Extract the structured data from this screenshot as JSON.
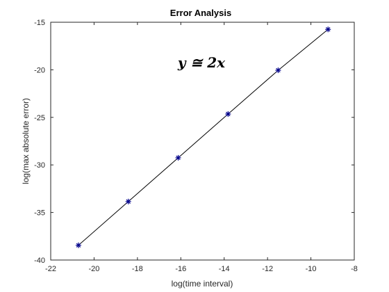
{
  "chart_data": {
    "type": "line",
    "title": "Error Analysis",
    "xlabel": "log(time interval)",
    "ylabel": "log(max absolute error)",
    "xlim": [
      -22,
      -8
    ],
    "ylim": [
      -40,
      -15
    ],
    "xticks": [
      -22,
      -20,
      -18,
      -16,
      -14,
      -12,
      -10,
      -8
    ],
    "yticks": [
      -40,
      -35,
      -30,
      -25,
      -20,
      -15
    ],
    "grid": false,
    "annotation": "y ≅ 2x",
    "series": [
      {
        "x": [
          -20.72,
          -18.42,
          -16.12,
          -13.82,
          -11.51,
          -9.21
        ],
        "y": [
          -38.45,
          -33.85,
          -29.25,
          -24.65,
          -20.05,
          -15.75
        ],
        "line_color": "#000000",
        "marker": "*",
        "marker_color": "#00008b"
      }
    ]
  }
}
